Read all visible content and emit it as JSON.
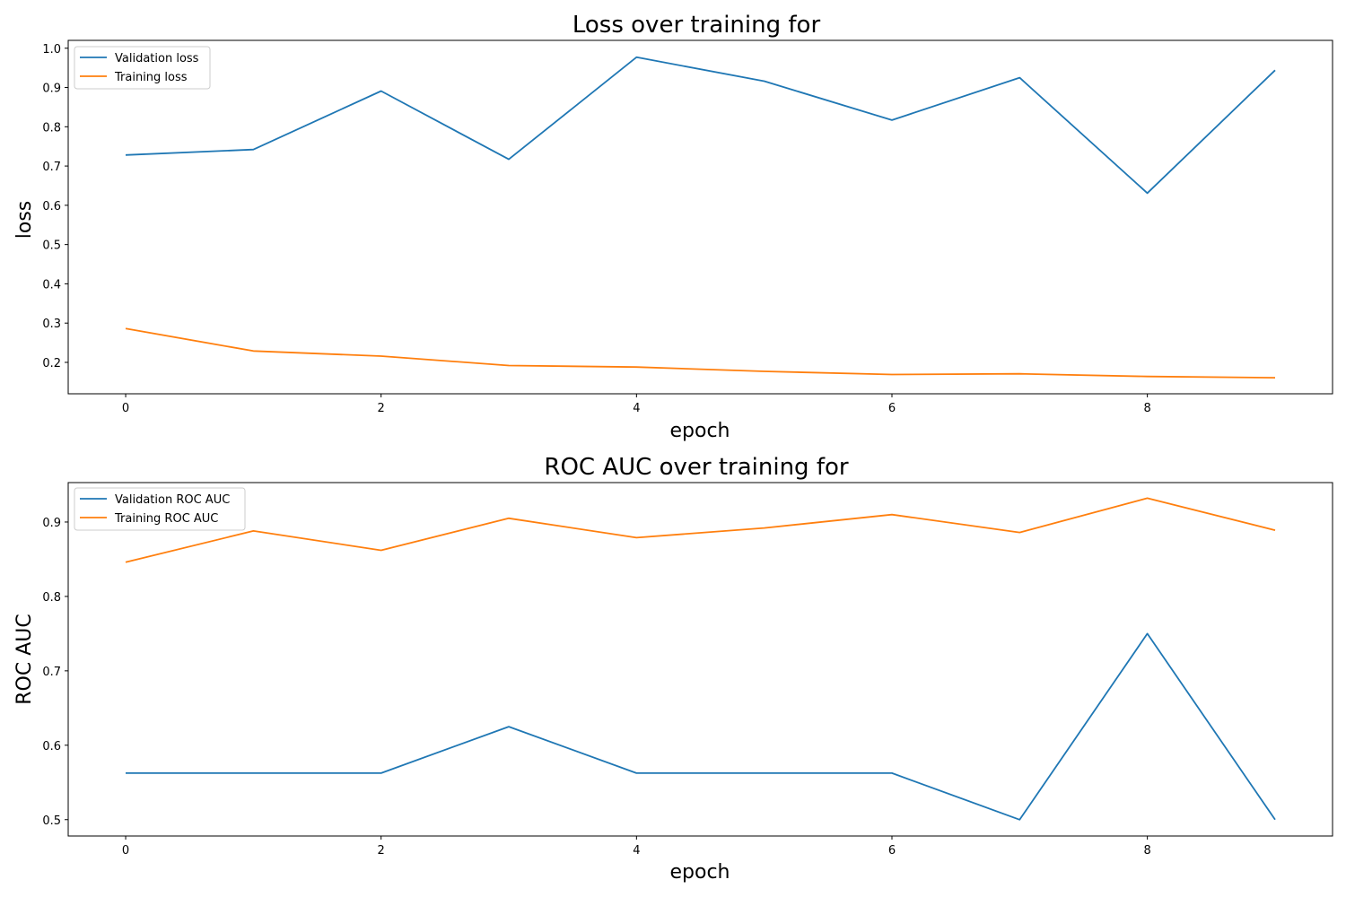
{
  "chart_data": [
    {
      "type": "line",
      "title": "Loss over training for",
      "xlabel": "epoch",
      "ylabel": "loss",
      "x": [
        0,
        1,
        2,
        3,
        4,
        5,
        6,
        7,
        8,
        9
      ],
      "xlim": [
        -0.45,
        9.45
      ],
      "ylim": [
        0.12,
        1.02
      ],
      "xticks": [
        0,
        2,
        4,
        6,
        8
      ],
      "yticks": [
        0.2,
        0.3,
        0.4,
        0.5,
        0.6,
        0.7,
        0.8,
        0.9,
        1.0
      ],
      "ytick_labels": [
        "0.2",
        "0.3",
        "0.4",
        "0.5",
        "0.6",
        "0.7",
        "0.8",
        "0.9",
        "1.0"
      ],
      "legend_position": "top-left",
      "grid": false,
      "series": [
        {
          "name": "Validation loss",
          "color": "#1f77b4",
          "values": [
            0.728,
            0.742,
            0.891,
            0.717,
            0.977,
            0.916,
            0.817,
            0.925,
            0.631,
            0.944
          ]
        },
        {
          "name": "Training loss",
          "color": "#ff7f0e",
          "values": [
            0.286,
            0.229,
            0.216,
            0.192,
            0.188,
            0.177,
            0.169,
            0.171,
            0.164,
            0.161
          ]
        }
      ]
    },
    {
      "type": "line",
      "title": "ROC AUC over training for",
      "xlabel": "epoch",
      "ylabel": "ROC AUC",
      "x": [
        0,
        1,
        2,
        3,
        4,
        5,
        6,
        7,
        8,
        9
      ],
      "xlim": [
        -0.45,
        9.45
      ],
      "ylim": [
        0.478,
        0.953
      ],
      "xticks": [
        0,
        2,
        4,
        6,
        8
      ],
      "yticks": [
        0.5,
        0.6,
        0.7,
        0.8,
        0.9
      ],
      "ytick_labels": [
        "0.5",
        "0.6",
        "0.7",
        "0.8",
        "0.9"
      ],
      "legend_position": "top-left",
      "grid": false,
      "series": [
        {
          "name": "Validation ROC AUC",
          "color": "#1f77b4",
          "values": [
            0.5625,
            0.5625,
            0.5625,
            0.625,
            0.5625,
            0.5625,
            0.5625,
            0.5,
            0.75,
            0.5
          ]
        },
        {
          "name": "Training ROC AUC",
          "color": "#ff7f0e",
          "values": [
            0.846,
            0.888,
            0.862,
            0.905,
            0.879,
            0.892,
            0.91,
            0.886,
            0.932,
            0.889
          ]
        }
      ]
    }
  ]
}
